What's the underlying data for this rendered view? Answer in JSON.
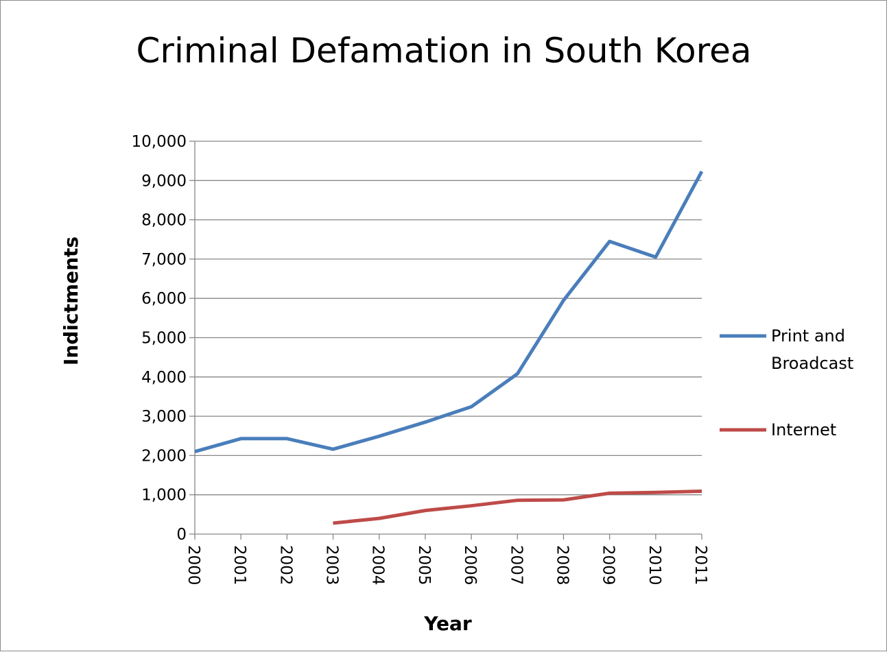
{
  "chart_data": {
    "type": "line",
    "title": "Criminal Defamation in South Korea",
    "xlabel": "Year",
    "ylabel": "Indictments",
    "x": [
      "2000",
      "2001",
      "2002",
      "2003",
      "2004",
      "2005",
      "2006",
      "2007",
      "2008",
      "2009",
      "2010",
      "2011"
    ],
    "ylim": [
      0,
      10000
    ],
    "yticks": [
      "0",
      "1,000",
      "2,000",
      "3,000",
      "4,000",
      "5,000",
      "6,000",
      "7,000",
      "8,000",
      "9,000",
      "10,000"
    ],
    "grid": true,
    "legend_position": "right",
    "series": [
      {
        "name": "Print and Broadcast",
        "name_lines": [
          "Print and",
          "Broadcast"
        ],
        "color": "#4a7ebb",
        "values": [
          2100,
          2430,
          2430,
          2160,
          2490,
          2850,
          3240,
          4080,
          5950,
          7450,
          7050,
          9230
        ]
      },
      {
        "name": "Internet",
        "name_lines": [
          "Internet"
        ],
        "color": "#be4b48",
        "values": [
          null,
          null,
          null,
          280,
          400,
          600,
          720,
          860,
          870,
          1040,
          1060,
          1090
        ]
      }
    ]
  }
}
